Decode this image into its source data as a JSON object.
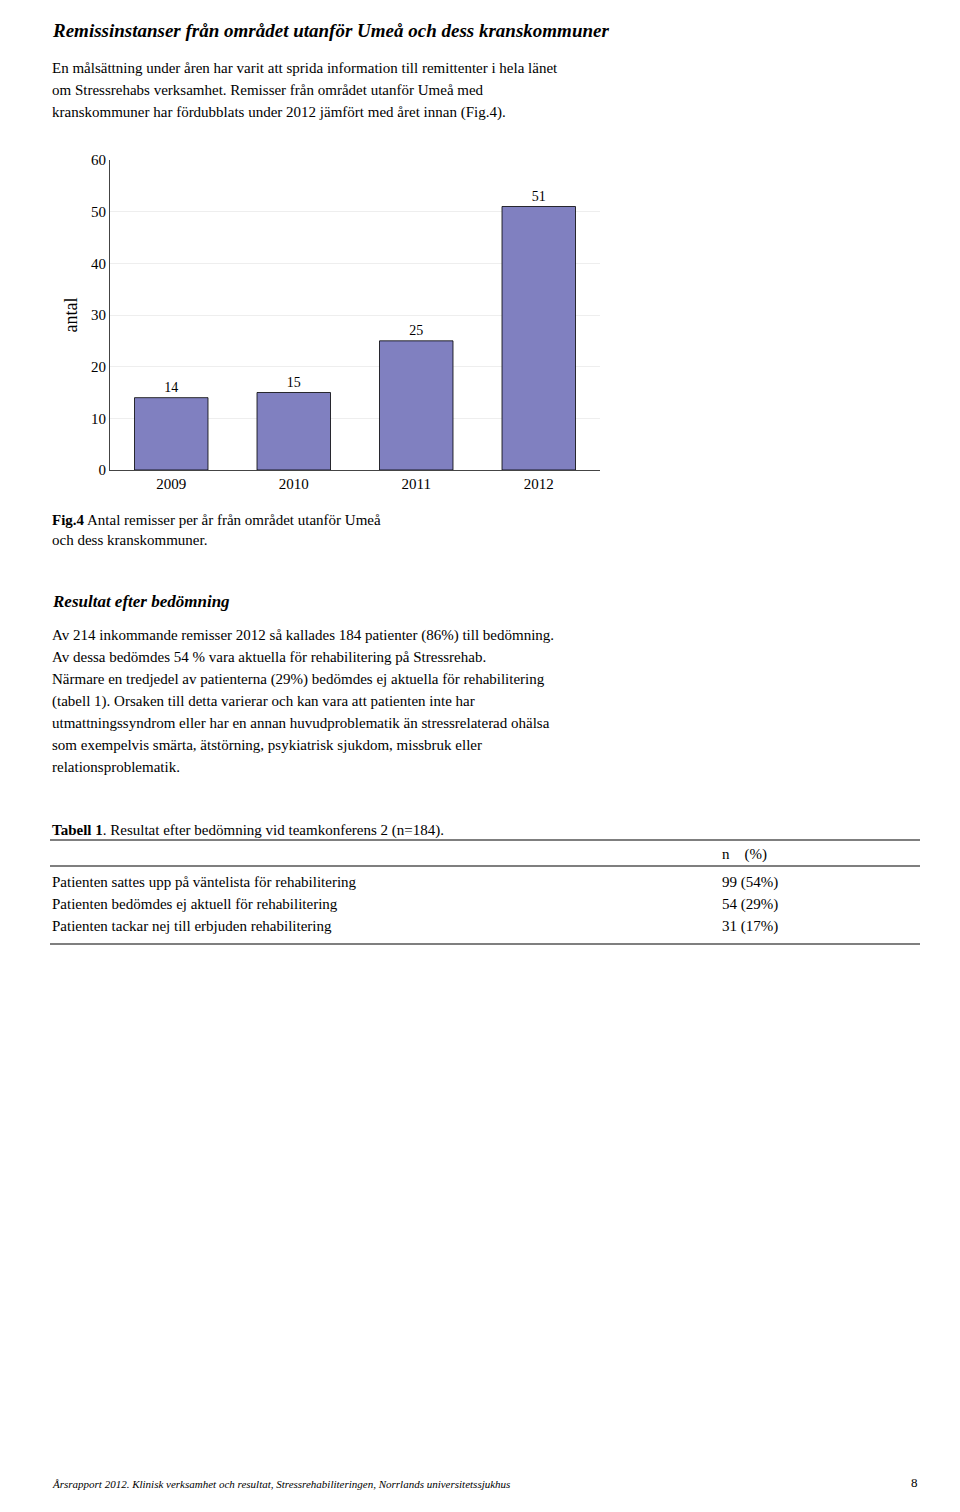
{
  "chart_data": {
    "type": "bar",
    "title": "Remissinstanser från området utanför Umeå och dess kranskommuner",
    "annotations": [
      "En målsättning under åren har varit att sprida information till remittenter i hela länet",
      "om Stressrehabs verksamhet. Remisser från området utanför Umeå med",
      "kranskommuner har fördubblats under 2012 jämfört med året innan (Fig.4).",
      [
        "Fig.4",
        " Antal remisser per år från området utanför Umeå"
      ],
      "och dess kranskommuner.",
      "Resultat efter bedömning",
      "Av 214 inkommande remisser 2012 så kallades 184 patienter (86%) till bedömning.",
      "Av dessa bedömdes 54 % vara aktuella för rehabilitering på Stressrehab.",
      "Närmare en tredjedel av patienterna (29%) bedömdes ej aktuella för rehabilitering",
      "(tabell 1). Orsaken till detta varierar och kan vara att patienten inte har",
      "utmattningssyndrom eller har en annan huvudproblematik än stressrelaterad ohälsa",
      "som exempelvis smärta, ätstörning, psykiatrisk sjukdom, missbruk eller",
      "relationsproblematik.",
      [
        "Tabell 1",
        ". Resultat efter bedömning vid teamkonferens 2 (n=184)."
      ],
      "n    (%)",
      [
        "Patienten sattes upp på väntelista för rehabilitering",
        "99 (54%)"
      ],
      [
        "Patienten bedömdes ej aktuell för rehabilitering",
        "54 (29%)"
      ],
      [
        "Patienten tackar nej till erbjuden rehabilitering",
        "31 (17%)"
      ],
      "Årsrapport 2012. Klinisk verksamhet och resultat, Stressrehabiliteringen, Norrlands universitetssjukhus",
      "8"
    ],
    "categories": [
      "2009",
      "2010",
      "2011",
      "2012"
    ],
    "values": [
      14,
      15,
      25,
      51
    ],
    "color": "#8080c0",
    "ylabel": "antal",
    "ylim": [
      0,
      60
    ],
    "yticks": [
      0,
      10,
      20,
      30,
      40,
      50,
      60
    ],
    "grid": true,
    "data_labels": true
  }
}
